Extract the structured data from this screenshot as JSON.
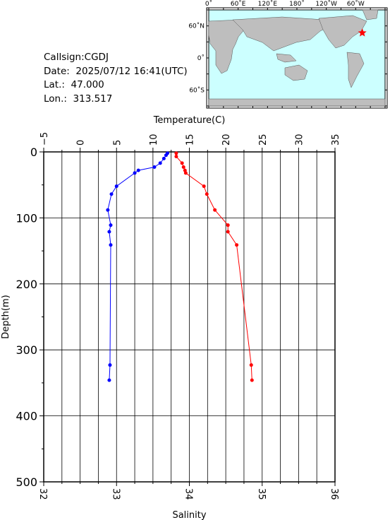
{
  "station": {
    "callsign_line": "Callsign:CGDJ",
    "date_line": "Date:  2025/07/12 16:41(UTC)",
    "lat_line": "Lat.:  47.000",
    "lon_line": "Lon.:  313.517"
  },
  "map": {
    "top_labels": [
      "0˚",
      "60˚E",
      "120˚E",
      "180˚",
      "120˚W",
      "60˚W"
    ],
    "left_labels": [
      "60˚N",
      "0˚",
      "60˚S"
    ],
    "ocean_color": "#ccffff",
    "land_color": "#bebebe",
    "marker_color": "#ff0000",
    "marker": "star-icon",
    "station_lon": 313.517,
    "station_lat": 47.0
  },
  "chart_data": {
    "type": "line",
    "title": "",
    "temperature_axis": {
      "label": "Temperature(C)",
      "range": [
        -5,
        35
      ],
      "ticks": [
        "−5",
        "0",
        "5",
        "10",
        "15",
        "20",
        "25",
        "30",
        "35"
      ]
    },
    "salinity_axis": {
      "label": "Salinity",
      "range": [
        32,
        36
      ],
      "ticks": [
        "32",
        "33",
        "34",
        "35",
        "36"
      ]
    },
    "depth_axis": {
      "label": "Depth(m)",
      "range": [
        0,
        500
      ],
      "inverted": true,
      "ticks": [
        "0",
        "100",
        "200",
        "300",
        "400",
        "500"
      ]
    },
    "grid": true,
    "series": [
      {
        "axis": "temperature",
        "color": "#0000ff",
        "points": [
          {
            "x": 12.0,
            "depth": 2
          },
          {
            "x": 11.8,
            "depth": 5
          },
          {
            "x": 11.5,
            "depth": 10
          },
          {
            "x": 11.0,
            "depth": 17
          },
          {
            "x": 10.2,
            "depth": 23
          },
          {
            "x": 8.0,
            "depth": 28
          },
          {
            "x": 7.5,
            "depth": 32
          },
          {
            "x": 5.0,
            "depth": 52
          },
          {
            "x": 4.3,
            "depth": 64
          },
          {
            "x": 3.8,
            "depth": 88
          },
          {
            "x": 4.2,
            "depth": 111
          },
          {
            "x": 4.0,
            "depth": 121
          },
          {
            "x": 4.2,
            "depth": 141
          },
          {
            "x": 4.1,
            "depth": 323
          },
          {
            "x": 4.0,
            "depth": 346
          }
        ]
      },
      {
        "axis": "salinity",
        "color": "#ff0000",
        "points": [
          {
            "x": 33.82,
            "depth": 2
          },
          {
            "x": 33.82,
            "depth": 7
          },
          {
            "x": 33.9,
            "depth": 17
          },
          {
            "x": 33.92,
            "depth": 23
          },
          {
            "x": 33.94,
            "depth": 28
          },
          {
            "x": 33.95,
            "depth": 32
          },
          {
            "x": 34.2,
            "depth": 52
          },
          {
            "x": 34.24,
            "depth": 64
          },
          {
            "x": 34.35,
            "depth": 88
          },
          {
            "x": 34.53,
            "depth": 111
          },
          {
            "x": 34.53,
            "depth": 121
          },
          {
            "x": 34.65,
            "depth": 141
          },
          {
            "x": 34.85,
            "depth": 323
          },
          {
            "x": 34.86,
            "depth": 346
          }
        ]
      }
    ]
  }
}
